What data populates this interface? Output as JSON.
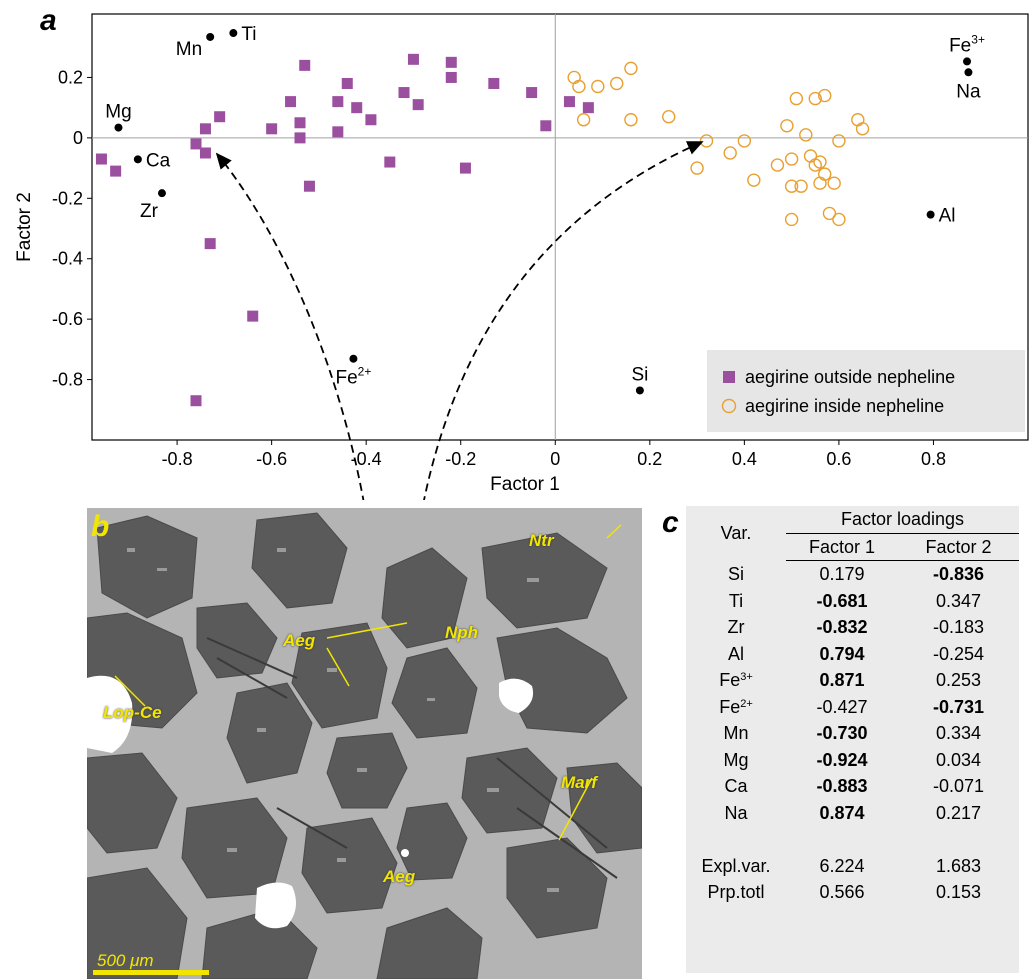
{
  "panel_a_letter": "a",
  "panel_b_letter": "b",
  "panel_c_letter": "c",
  "chart_data": {
    "type": "scatter",
    "xlabel": "Factor 1",
    "ylabel": "Factor 2",
    "xlim": [
      -0.98,
      1.0
    ],
    "ylim": [
      -1.0,
      0.41
    ],
    "xticks": [
      -0.8,
      -0.6,
      -0.4,
      -0.2,
      0,
      0.2,
      0.4,
      0.6,
      0.8
    ],
    "xtick_labels": [
      "-0.8",
      "-0.6",
      "-0.4",
      "-0.2",
      "0",
      "0.2",
      "0.4",
      "0.6",
      "0.8"
    ],
    "yticks": [
      0.2,
      0,
      -0.2,
      -0.4,
      -0.6,
      -0.8
    ],
    "ytick_labels": [
      "0.2",
      "0",
      "-0.2",
      "-0.4",
      "-0.6",
      "-0.8"
    ],
    "grid": false,
    "zero_lines": true,
    "legend_position": "bottom-right",
    "series": [
      {
        "name": "aegirine outside nepheline",
        "marker": "filled-square",
        "color": "#9b4f9f",
        "points": [
          [
            -0.96,
            -0.07
          ],
          [
            -0.93,
            -0.11
          ],
          [
            -0.76,
            -0.02
          ],
          [
            -0.76,
            -0.87
          ],
          [
            -0.74,
            -0.05
          ],
          [
            -0.74,
            0.03
          ],
          [
            -0.73,
            -0.35
          ],
          [
            -0.71,
            0.07
          ],
          [
            -0.64,
            -0.59
          ],
          [
            -0.6,
            0.03
          ],
          [
            -0.56,
            0.12
          ],
          [
            -0.54,
            0.05
          ],
          [
            -0.54,
            0.0
          ],
          [
            -0.53,
            0.24
          ],
          [
            -0.52,
            -0.16
          ],
          [
            -0.46,
            0.12
          ],
          [
            -0.46,
            0.02
          ],
          [
            -0.44,
            0.18
          ],
          [
            -0.42,
            0.1
          ],
          [
            -0.39,
            0.06
          ],
          [
            -0.35,
            -0.08
          ],
          [
            -0.32,
            0.15
          ],
          [
            -0.3,
            0.26
          ],
          [
            -0.29,
            0.11
          ],
          [
            -0.22,
            0.2
          ],
          [
            -0.22,
            0.25
          ],
          [
            -0.19,
            -0.1
          ],
          [
            -0.13,
            0.18
          ],
          [
            -0.05,
            0.15
          ],
          [
            -0.02,
            0.04
          ],
          [
            0.03,
            0.12
          ],
          [
            0.07,
            0.1
          ]
        ]
      },
      {
        "name": "aegirine inside nepheline",
        "marker": "open-circle",
        "color": "#e8a030",
        "points": [
          [
            0.04,
            0.2
          ],
          [
            0.05,
            0.17
          ],
          [
            0.06,
            0.06
          ],
          [
            0.09,
            0.17
          ],
          [
            0.13,
            0.18
          ],
          [
            0.16,
            0.23
          ],
          [
            0.16,
            0.06
          ],
          [
            0.24,
            0.07
          ],
          [
            0.3,
            -0.1
          ],
          [
            0.32,
            -0.01
          ],
          [
            0.37,
            -0.05
          ],
          [
            0.4,
            -0.01
          ],
          [
            0.42,
            -0.14
          ],
          [
            0.47,
            -0.09
          ],
          [
            0.49,
            0.04
          ],
          [
            0.5,
            -0.07
          ],
          [
            0.5,
            -0.16
          ],
          [
            0.5,
            -0.27
          ],
          [
            0.51,
            0.13
          ],
          [
            0.52,
            -0.16
          ],
          [
            0.53,
            0.01
          ],
          [
            0.54,
            -0.06
          ],
          [
            0.55,
            0.13
          ],
          [
            0.55,
            -0.09
          ],
          [
            0.56,
            -0.15
          ],
          [
            0.56,
            -0.08
          ],
          [
            0.57,
            -0.12
          ],
          [
            0.57,
            0.14
          ],
          [
            0.58,
            -0.25
          ],
          [
            0.59,
            -0.15
          ],
          [
            0.6,
            -0.27
          ],
          [
            0.6,
            -0.01
          ],
          [
            0.64,
            0.06
          ],
          [
            0.65,
            0.03
          ]
        ]
      },
      {
        "name": "loadings",
        "marker": "small-dot",
        "color": "#000000",
        "points": [
          {
            "label": "Mn",
            "x": -0.73,
            "y": 0.334,
            "anchor": "left"
          },
          {
            "label": "Ti",
            "x": -0.681,
            "y": 0.347,
            "anchor": "right"
          },
          {
            "label": "Mg",
            "x": -0.924,
            "y": 0.034,
            "anchor": "above"
          },
          {
            "label": "Ca",
            "x": -0.883,
            "y": -0.071,
            "anchor": "right"
          },
          {
            "label": "Zr",
            "x": -0.832,
            "y": -0.183,
            "anchor": "below-left"
          },
          {
            "label": "Fe2+",
            "x": -0.427,
            "y": -0.731,
            "anchor": "below"
          },
          {
            "label": "Si",
            "x": 0.179,
            "y": -0.836,
            "anchor": "above"
          },
          {
            "label": "Al",
            "x": 0.794,
            "y": -0.254,
            "anchor": "right"
          },
          {
            "label": "Fe3+",
            "x": 0.871,
            "y": 0.253,
            "anchor": "above"
          },
          {
            "label": "Na",
            "x": 0.874,
            "y": 0.217,
            "anchor": "below"
          }
        ]
      }
    ]
  },
  "loading_label_text": {
    "Mn": "Mn",
    "Ti": "Ti",
    "Mg": "Mg",
    "Ca": "Ca",
    "Zr": "Zr",
    "Fe2+": "Fe",
    "Fe2+_sup": "2+",
    "Si": "Si",
    "Al": "Al",
    "Fe3+": "Fe",
    "Fe3+_sup": "3+",
    "Na": "Na"
  },
  "photo": {
    "labels": {
      "ntr": "Ntr",
      "nph": "Nph",
      "aeg_top": "Aeg",
      "lop": "Lop-Ce",
      "marf": "Marf",
      "aeg_bottom": "Aeg"
    },
    "scale_label": "500 μm",
    "colors": {
      "matrix": "#b4b4b4",
      "nepheline": "#5a5a5a",
      "bright": "#ffffff",
      "label": "#f2e600"
    }
  },
  "table": {
    "var_header": "Var.",
    "group_header": "Factor loadings",
    "col1": "Factor 1",
    "col2": "Factor 2",
    "rows": [
      {
        "var": "Si",
        "sup": "",
        "f1": "0.179",
        "f1_bold": false,
        "f2": "-0.836",
        "f2_bold": true
      },
      {
        "var": "Ti",
        "sup": "",
        "f1": "-0.681",
        "f1_bold": true,
        "f2": "0.347",
        "f2_bold": false
      },
      {
        "var": "Zr",
        "sup": "",
        "f1": "-0.832",
        "f1_bold": true,
        "f2": "-0.183",
        "f2_bold": false
      },
      {
        "var": "Al",
        "sup": "",
        "f1": "0.794",
        "f1_bold": true,
        "f2": "-0.254",
        "f2_bold": false
      },
      {
        "var": "Fe",
        "sup": "3+",
        "f1": "0.871",
        "f1_bold": true,
        "f2": "0.253",
        "f2_bold": false
      },
      {
        "var": "Fe",
        "sup": "2+",
        "f1": "-0.427",
        "f1_bold": false,
        "f2": "-0.731",
        "f2_bold": true
      },
      {
        "var": "Mn",
        "sup": "",
        "f1": "-0.730",
        "f1_bold": true,
        "f2": "0.334",
        "f2_bold": false
      },
      {
        "var": "Mg",
        "sup": "",
        "f1": "-0.924",
        "f1_bold": true,
        "f2": "0.034",
        "f2_bold": false
      },
      {
        "var": "Ca",
        "sup": "",
        "f1": "-0.883",
        "f1_bold": true,
        "f2": "-0.071",
        "f2_bold": false
      },
      {
        "var": "Na",
        "sup": "",
        "f1": "0.874",
        "f1_bold": true,
        "f2": "0.217",
        "f2_bold": false
      }
    ],
    "footer": [
      {
        "label": "Expl.var.",
        "f1": "6.224",
        "f2": "1.683"
      },
      {
        "label": "Prp.totl",
        "f1": "0.566",
        "f2": "0.153"
      }
    ]
  }
}
